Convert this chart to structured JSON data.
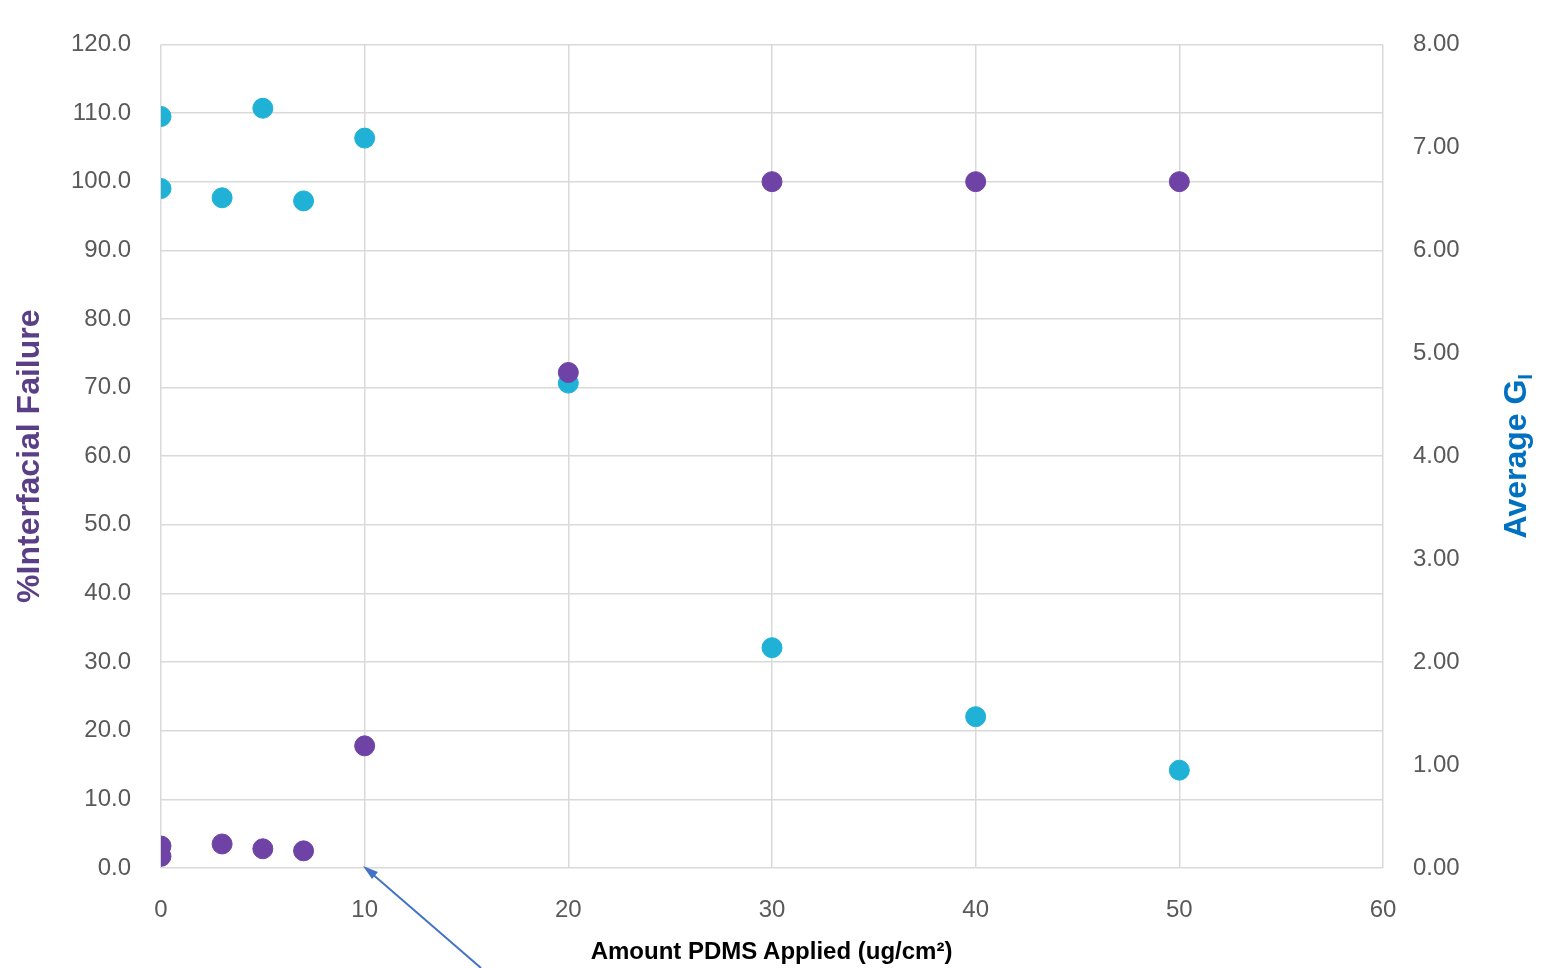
{
  "chart_data": {
    "type": "scatter",
    "xlabel": "Amount PDMS Applied (ug/cm²)",
    "ylabel": "%Interfacial Failure",
    "y2label": "Average G$_{I}$",
    "series": [
      {
        "color": "#6f42a6",
        "x": [
          0,
          0,
          3,
          5,
          7,
          10,
          20,
          30,
          40,
          50
        ],
        "values": [
          3.2,
          1.7,
          3.5,
          2.8,
          2.5,
          17.8,
          72.2,
          100,
          100,
          100
        ]
      },
      {
        "color": "#1fb2d6",
        "axis": "y2",
        "x": [
          0,
          0,
          3,
          5,
          7,
          10,
          20,
          30,
          40,
          50
        ],
        "values": [
          7.3,
          6.6,
          6.51,
          7.38,
          6.48,
          7.09,
          4.71,
          2.14,
          1.47,
          0.95
        ]
      }
    ],
    "xlim": [
      0,
      60
    ],
    "xticks": [
      0,
      10,
      20,
      30,
      40,
      50,
      60
    ],
    "ylim": [
      0,
      120
    ],
    "yticks": [
      {
        "value": 0,
        "label": "0.0"
      },
      {
        "value": 10,
        "label": "10.0"
      },
      {
        "value": 20,
        "label": "20.0"
      },
      {
        "value": 30,
        "label": "30.0"
      },
      {
        "value": 40,
        "label": "40.0"
      },
      {
        "value": 50,
        "label": "50.0"
      },
      {
        "value": 60,
        "label": "60.0"
      },
      {
        "value": 70,
        "label": "70.0"
      },
      {
        "value": 80,
        "label": "80.0"
      },
      {
        "value": 90,
        "label": "90.0"
      },
      {
        "value": 100,
        "label": "100.0"
      },
      {
        "value": 110,
        "label": "110.0"
      },
      {
        "value": 120,
        "label": "120.0"
      }
    ],
    "y2lim": [
      0,
      8
    ],
    "y2ticks": [
      {
        "value": 0,
        "label": "0.00"
      },
      {
        "value": 1,
        "label": "1.00"
      },
      {
        "value": 2,
        "label": "2.00"
      },
      {
        "value": 3,
        "label": "3.00"
      },
      {
        "value": 4,
        "label": "4.00"
      },
      {
        "value": 5,
        "label": "5.00"
      },
      {
        "value": 6,
        "label": "6.00"
      },
      {
        "value": 7,
        "label": "7.00"
      },
      {
        "value": 8,
        "label": "8.00"
      }
    ],
    "grid": true,
    "legend": false,
    "marker": "circle"
  }
}
